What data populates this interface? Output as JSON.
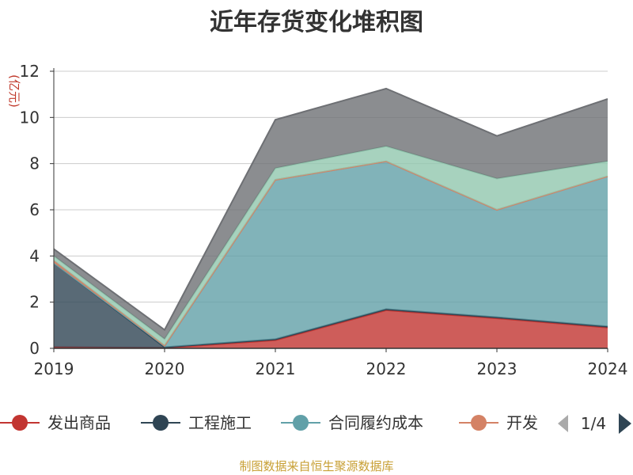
{
  "chart_data": {
    "type": "area",
    "stacked": true,
    "title": "近年存货变化堆积图",
    "ylabel": "(亿元)",
    "x": [
      "2019",
      "2020",
      "2021",
      "2022",
      "2023",
      "2024"
    ],
    "ylim": [
      0,
      12
    ],
    "yticks": [
      0,
      2,
      4,
      6,
      8,
      10,
      12
    ],
    "grid": true,
    "series": [
      {
        "name": "发出商品",
        "color": "#c23531",
        "values": [
          0.05,
          0.02,
          0.35,
          1.65,
          1.3,
          0.9
        ]
      },
      {
        "name": "工程施工",
        "color": "#2f4554",
        "values": [
          3.65,
          0.03,
          0.05,
          0.05,
          0.05,
          0.05
        ]
      },
      {
        "name": "合同履约成本",
        "color": "#61a0a8",
        "values": [
          0.0,
          0.05,
          6.9,
          6.4,
          4.65,
          6.5
        ]
      },
      {
        "name": "开发",
        "color": "#d48265",
        "values": [
          0.1,
          0.02,
          0.0,
          0.0,
          0.0,
          0.0
        ]
      },
      {
        "name": "",
        "color": "#91c7ae",
        "values": [
          0.2,
          0.28,
          0.5,
          0.65,
          1.35,
          0.65
        ]
      },
      {
        "name": "",
        "color": "#6e7074",
        "values": [
          0.3,
          0.4,
          2.1,
          2.5,
          1.85,
          2.7
        ]
      }
    ],
    "legend": {
      "items": [
        "发出商品",
        "工程施工",
        "合同履约成本",
        "开发"
      ],
      "page": "1/4",
      "position": "bottom"
    },
    "source": "制图数据来自恒生聚源数据库"
  }
}
